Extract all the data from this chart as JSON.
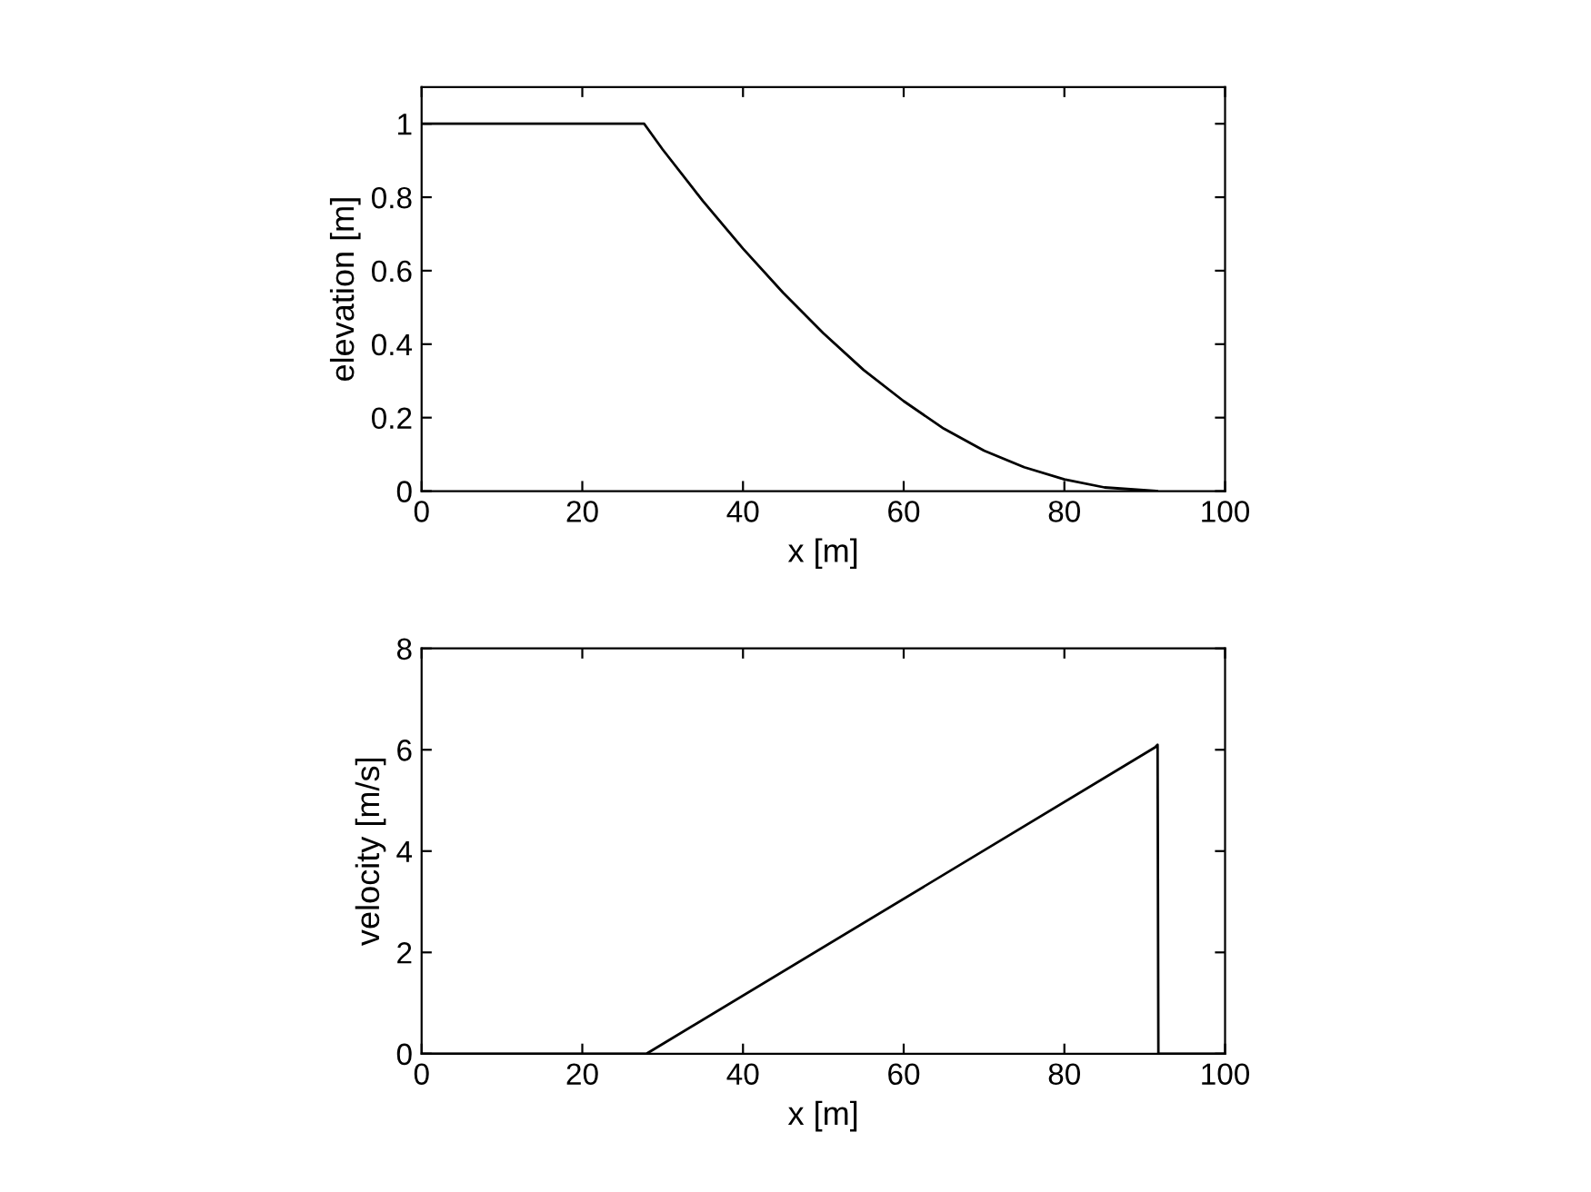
{
  "chart_data": [
    {
      "type": "line",
      "xlabel": "x [m]",
      "ylabel": "elevation [m]",
      "xlim": [
        0,
        100
      ],
      "xticks": [
        0,
        20,
        40,
        60,
        80,
        100
      ],
      "ylim": [
        0,
        1.1
      ],
      "yticks": [
        0,
        0.2,
        0.4,
        0.6,
        0.8,
        1
      ],
      "series": [
        {
          "color": "#000000",
          "x": [
            0,
            27.7,
            30,
            35,
            40,
            45,
            50,
            55,
            60,
            65,
            70,
            75,
            80,
            85,
            91.5
          ],
          "values": [
            1,
            1,
            0.93,
            0.79,
            0.66,
            0.54,
            0.43,
            0.33,
            0.245,
            0.17,
            0.11,
            0.065,
            0.032,
            0.01,
            0
          ]
        }
      ]
    },
    {
      "type": "line",
      "xlabel": "x [m]",
      "ylabel": "velocity [m/s]",
      "xlim": [
        0,
        100
      ],
      "xticks": [
        0,
        20,
        40,
        60,
        80,
        100
      ],
      "ylim": [
        0,
        8
      ],
      "yticks": [
        0,
        2,
        4,
        6,
        8
      ],
      "series": [
        {
          "color": "#000000",
          "x": [
            0,
            28,
            91.3,
            91.6,
            91.7,
            100
          ],
          "values": [
            0,
            0,
            6.05,
            6.1,
            0,
            0
          ]
        }
      ]
    }
  ]
}
